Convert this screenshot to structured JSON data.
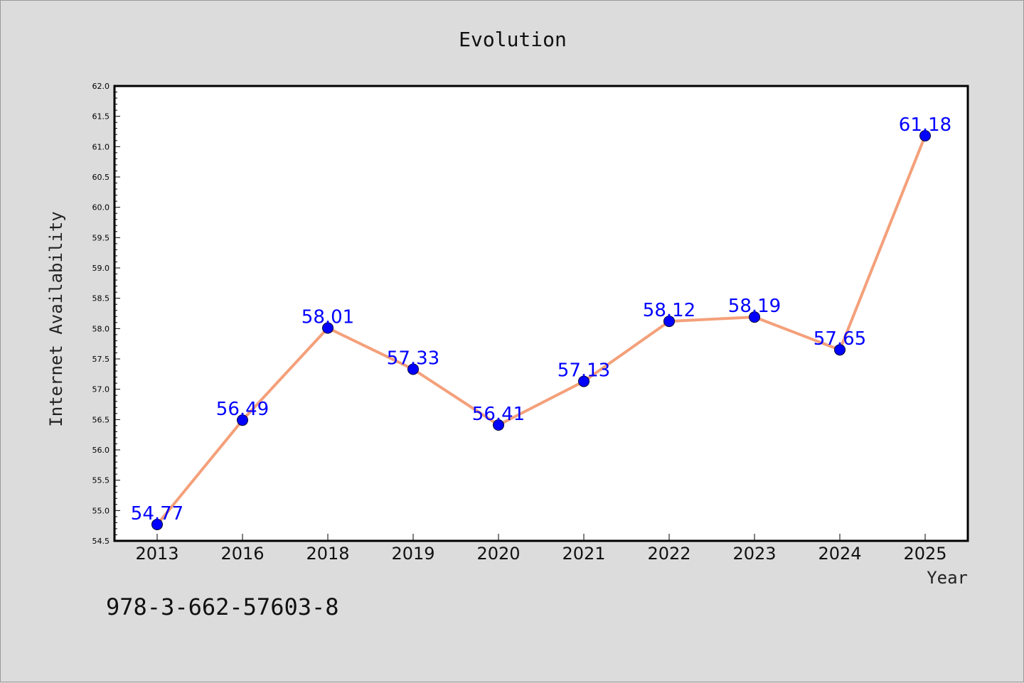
{
  "footnote": "978-3-662-57603-8",
  "colors": {
    "background": "#dcdcdc",
    "plot_background": "#ffffff",
    "line": "#f4a07a",
    "marker": "#0000ff",
    "label": "#0000ff"
  },
  "chart_data": {
    "type": "line",
    "title": "Evolution",
    "xlabel": "Year",
    "ylabel": "Internet Availability",
    "categories": [
      "2013",
      "2016",
      "2018",
      "2019",
      "2020",
      "2021",
      "2022",
      "2023",
      "2024",
      "2025"
    ],
    "series": [
      {
        "values": [
          54.77,
          56.49,
          58.01,
          57.33,
          56.41,
          57.13,
          58.12,
          58.19,
          57.65,
          61.18
        ],
        "labels": [
          "54.77",
          "56.49",
          "58.01",
          "57.33",
          "56.41",
          "57.13",
          "58.12",
          "58.19",
          "57.65",
          "61.18"
        ]
      }
    ],
    "ylim": [
      54.5,
      62.0
    ],
    "yticks": [
      "54.5",
      "55.0",
      "55.5",
      "56.0",
      "56.5",
      "57.0",
      "57.5",
      "58.0",
      "58.5",
      "59.0",
      "59.5",
      "60.0",
      "60.5",
      "61.0",
      "61.5",
      "62.0"
    ],
    "yticks_minor_step": 0.1,
    "grid": false,
    "legend": "none"
  }
}
